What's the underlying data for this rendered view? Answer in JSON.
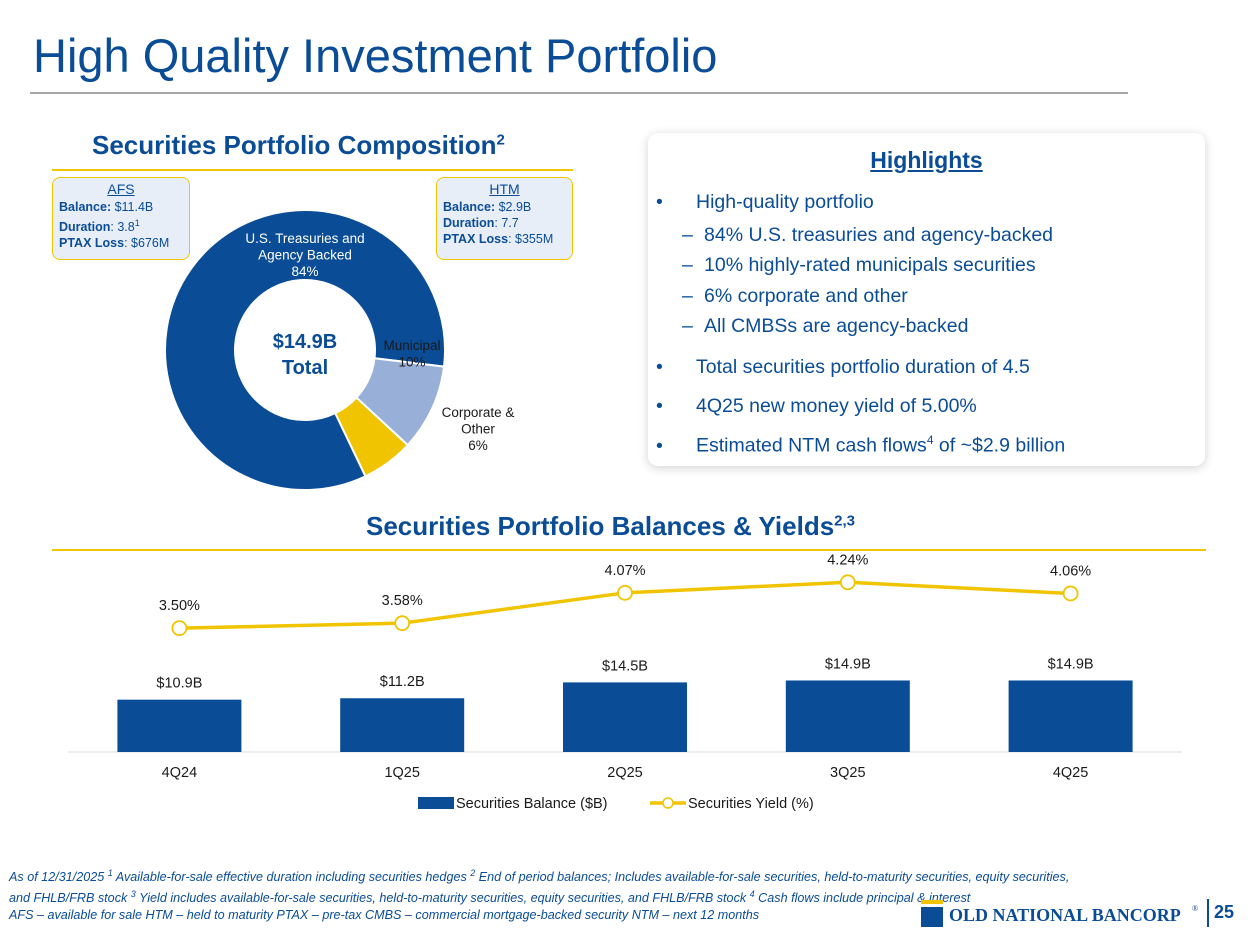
{
  "title": "High Quality Investment Portfolio",
  "composition": {
    "title": "Securities Portfolio Composition",
    "title_sup": "2",
    "afs": {
      "heading": "AFS",
      "balance_label": "Balance:",
      "balance_value": " $11.4B",
      "duration_label": "Duration",
      "duration_value": ": 3.8",
      "duration_sup": "1",
      "ptax_label": "PTAX Loss",
      "ptax_value": ": $676M"
    },
    "htm": {
      "heading": "HTM",
      "balance_label": "Balance:",
      "balance_value": " $2.9B",
      "duration_label": "Duration",
      "duration_value": ": 7.7",
      "ptax_label": "PTAX Loss",
      "ptax_value": ": $355M"
    },
    "center_value": "$14.9B",
    "center_label": "Total"
  },
  "highlights": {
    "title": "Highlights",
    "bullet_glyph": "•",
    "dash_glyph": "–",
    "items": [
      {
        "text": "High-quality portfolio"
      },
      {
        "text": "84% U.S. treasuries and agency-backed"
      },
      {
        "text": "10% highly-rated municipals securities"
      },
      {
        "text": "6% corporate and other"
      },
      {
        "text": "All CMBSs are agency-backed"
      },
      {
        "text": "Total securities portfolio duration of 4.5"
      },
      {
        "text": "4Q25 new money yield of 5.00%"
      },
      {
        "text_before": "Estimated NTM cash flows",
        "sup": "4",
        "text_after": " of ~$2.9 billion"
      }
    ]
  },
  "balances": {
    "title": "Securities Portfolio Balances & Yields",
    "title_sup": "2,3"
  },
  "chart_data": [
    {
      "type": "pie",
      "title": "Securities Portfolio Composition",
      "slices": [
        {
          "name": "U.S. Treasuries and Agency Backed",
          "value": 84,
          "label_lines": [
            "U.S. Treasuries and",
            "Agency Backed",
            "84%"
          ],
          "color": "#0a4c96"
        },
        {
          "name": "Municipal",
          "value": 10,
          "label_lines": [
            "Municipal",
            "10%"
          ],
          "color": "#98b0d8"
        },
        {
          "name": "Corporate & Other",
          "value": 6,
          "label_lines": [
            "Corporate &",
            "Other",
            "6%"
          ],
          "color": "#f0c400"
        }
      ],
      "center_label": "$14.9B Total"
    },
    {
      "type": "bar",
      "title": "Securities Portfolio Balances & Yields",
      "categories": [
        "4Q24",
        "1Q25",
        "2Q25",
        "3Q25",
        "4Q25"
      ],
      "series": [
        {
          "name": "Securities Balance ($B)",
          "kind": "bar",
          "values": [
            10.9,
            11.2,
            14.5,
            14.9,
            14.9
          ],
          "labels": [
            "$10.9B",
            "$11.2B",
            "$14.5B",
            "$14.9B",
            "$14.9B"
          ],
          "color": "#0a4c96"
        },
        {
          "name": "Securities Yield (%)",
          "kind": "line",
          "values": [
            3.5,
            3.58,
            4.07,
            4.24,
            4.06
          ],
          "labels": [
            "3.50%",
            "3.58%",
            "4.07%",
            "4.24%",
            "4.06%"
          ],
          "color": "#f0c400"
        }
      ],
      "bar_ylim": [
        0,
        40
      ],
      "line_ylim": [
        1.5,
        4.6
      ],
      "legend": "bottom"
    }
  ],
  "footnote": {
    "line1_a": "As of 12/31/2025   ",
    "s1": "1",
    "t1": " Available-for-sale effective duration including securities hedges   ",
    "s2": "2",
    "t2": " End of period balances; Includes available-for-sale securities, held-to-maturity securities, equity securities,",
    "line2_a": "and FHLB/FRB stock   ",
    "s3": "3",
    "t3": " Yield includes available-for-sale securities, held-to-maturity securities, equity securities, and FHLB/FRB stock   ",
    "s4": "4",
    "t4": " Cash flows include principal & interest",
    "line3": "AFS – available for sale   HTM – held to maturity   PTAX – pre-tax   CMBS – commercial mortgage-backed security   NTM – next 12 months"
  },
  "logo": {
    "text": "OLD NATIONAL BANCORP",
    "mark": "®"
  },
  "page_number": "25",
  "colors": {
    "navy": "#0a4c96",
    "gold": "#f0c400",
    "light_blue": "#98b0d8",
    "callout_bg": "#e8eef7"
  }
}
